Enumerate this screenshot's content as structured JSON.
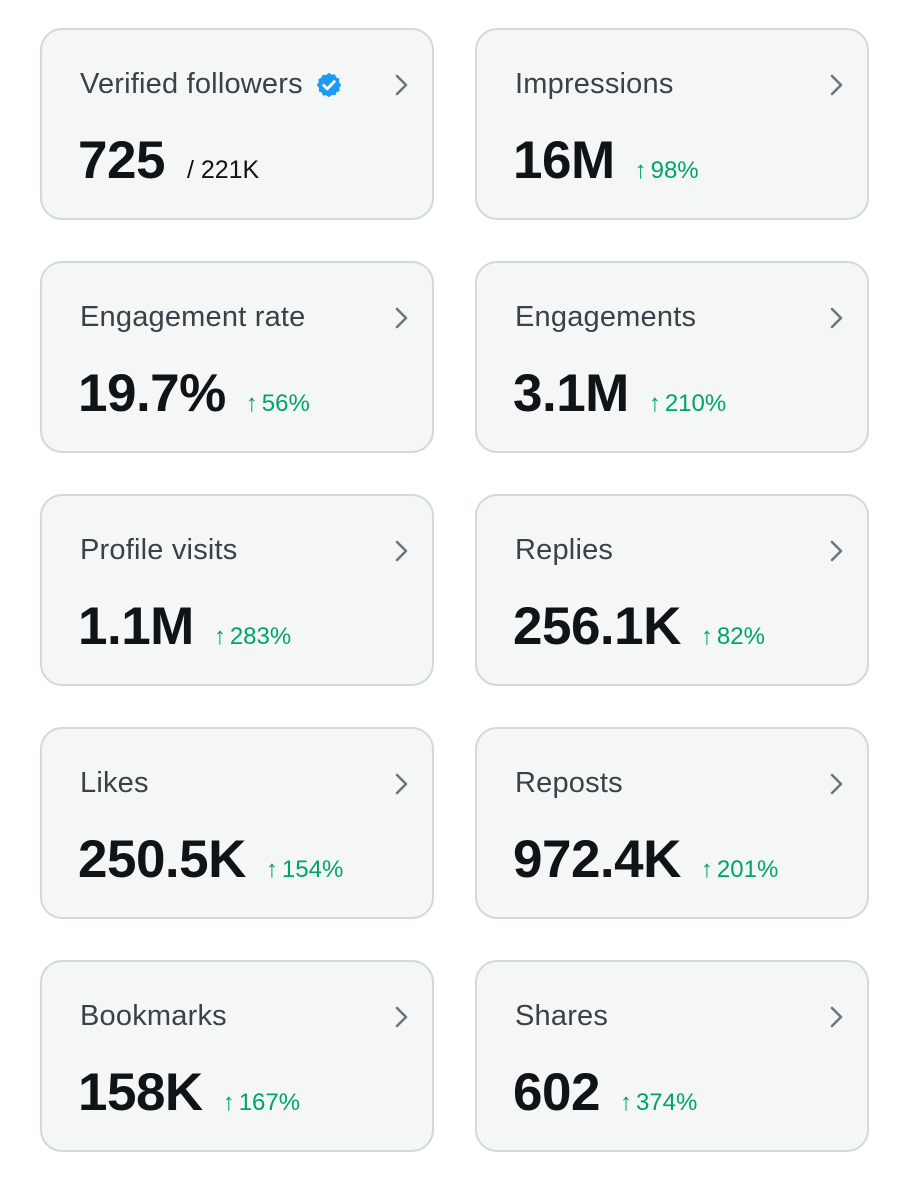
{
  "metrics": [
    {
      "label": "Verified followers",
      "value": "725",
      "sub": "/ 221K",
      "verified": true,
      "icon": "verified-badge-icon"
    },
    {
      "label": "Impressions",
      "value": "16M",
      "delta": "98%",
      "delta_arrow": "↑"
    },
    {
      "label": "Engagement rate",
      "value": "19.7%",
      "delta": "56%",
      "delta_arrow": "↑"
    },
    {
      "label": "Engagements",
      "value": "3.1M",
      "delta": "210%",
      "delta_arrow": "↑"
    },
    {
      "label": "Profile visits",
      "value": "1.1M",
      "delta": "283%",
      "delta_arrow": "↑"
    },
    {
      "label": "Replies",
      "value": "256.1K",
      "delta": "82%",
      "delta_arrow": "↑"
    },
    {
      "label": "Likes",
      "value": "250.5K",
      "delta": "154%",
      "delta_arrow": "↑"
    },
    {
      "label": "Reposts",
      "value": "972.4K",
      "delta": "201%",
      "delta_arrow": "↑"
    },
    {
      "label": "Bookmarks",
      "value": "158K",
      "delta": "167%",
      "delta_arrow": "↑"
    },
    {
      "label": "Shares",
      "value": "602",
      "delta": "374%",
      "delta_arrow": "↑"
    }
  ],
  "colors": {
    "card_bg": "#f5f7f7",
    "card_border": "#cfd9de",
    "label": "#3a4249",
    "value": "#0f1419",
    "delta_up": "#00a36a",
    "verified_badge": "#1d9bf0",
    "chevron": "#6b7780"
  }
}
